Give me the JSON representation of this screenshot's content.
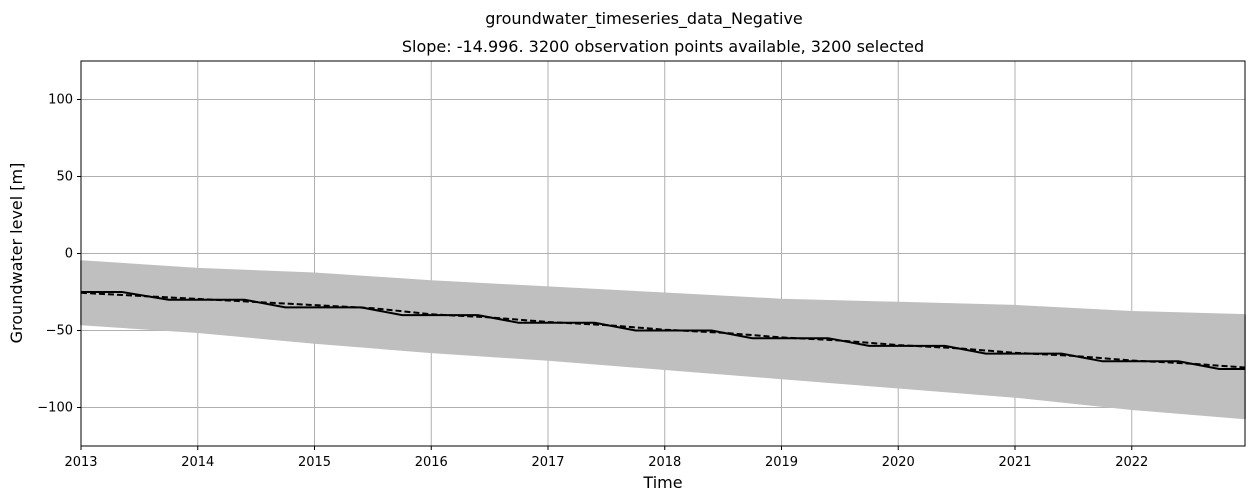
{
  "chart_data": {
    "type": "line",
    "suptitle": "groundwater_timeseries_data_Negative",
    "title": "Slope: -14.996. 3200 observation points available, 3200 selected",
    "xlabel": "Time",
    "ylabel": "Groundwater level [m]",
    "xlim": [
      2013.0,
      2022.97
    ],
    "ylim": [
      -125,
      125
    ],
    "x_ticks": [
      2013,
      2014,
      2015,
      2016,
      2017,
      2018,
      2019,
      2020,
      2021,
      2022
    ],
    "x_tick_labels": [
      "2013",
      "2014",
      "2015",
      "2016",
      "2017",
      "2018",
      "2019",
      "2020",
      "2021",
      "2022"
    ],
    "y_ticks": [
      -100,
      -50,
      0,
      50,
      100
    ],
    "y_tick_labels": [
      "−100",
      "−50",
      "0",
      "50",
      "100"
    ],
    "grid": true,
    "colors": {
      "background_series": "#bfbfbf",
      "median": "#000000",
      "trend": "#000000",
      "grid": "#b0b0b0"
    },
    "envelope": {
      "x": [
        2013.0,
        2014.0,
        2015.0,
        2016.0,
        2017.0,
        2018.0,
        2019.0,
        2020.0,
        2021.0,
        2022.0,
        2022.97
      ],
      "upper": [
        -5,
        -10,
        -13,
        -18,
        -22,
        -26,
        -30,
        -32,
        -34,
        -38,
        -40
      ],
      "lower": [
        -46,
        -51,
        -58,
        -64,
        -69,
        -75,
        -81,
        -87,
        -93,
        -101,
        -107
      ]
    },
    "series": [
      {
        "style": "solid",
        "x": [
          2013.0,
          2013.35,
          2013.75,
          2014.4,
          2014.75,
          2015.4,
          2015.75,
          2016.4,
          2016.75,
          2017.4,
          2017.75,
          2018.4,
          2018.75,
          2019.4,
          2019.75,
          2020.4,
          2020.75,
          2021.4,
          2021.75,
          2022.4,
          2022.75,
          2022.97
        ],
        "y": [
          -25,
          -25,
          -30,
          -30,
          -35,
          -35,
          -40,
          -40,
          -45,
          -45,
          -50,
          -50,
          -55,
          -55,
          -60,
          -60,
          -65,
          -65,
          -70,
          -70,
          -75,
          -75
        ]
      },
      {
        "style": "dashed",
        "x": [
          2013.0,
          2013.5,
          2014.0,
          2014.5,
          2015.0,
          2015.5,
          2016.0,
          2016.5,
          2017.0,
          2017.5,
          2018.0,
          2018.5,
          2019.0,
          2019.5,
          2020.0,
          2020.5,
          2021.0,
          2021.5,
          2022.0,
          2022.5,
          2022.97
        ],
        "y": [
          -25.5,
          -27.5,
          -29.5,
          -31.5,
          -33.5,
          -35.5,
          -39.5,
          -41.5,
          -44.5,
          -46.5,
          -49.5,
          -51.5,
          -54.5,
          -56.5,
          -59.5,
          -61.5,
          -64.5,
          -66.5,
          -69.5,
          -71.5,
          -74.0
        ]
      }
    ]
  }
}
